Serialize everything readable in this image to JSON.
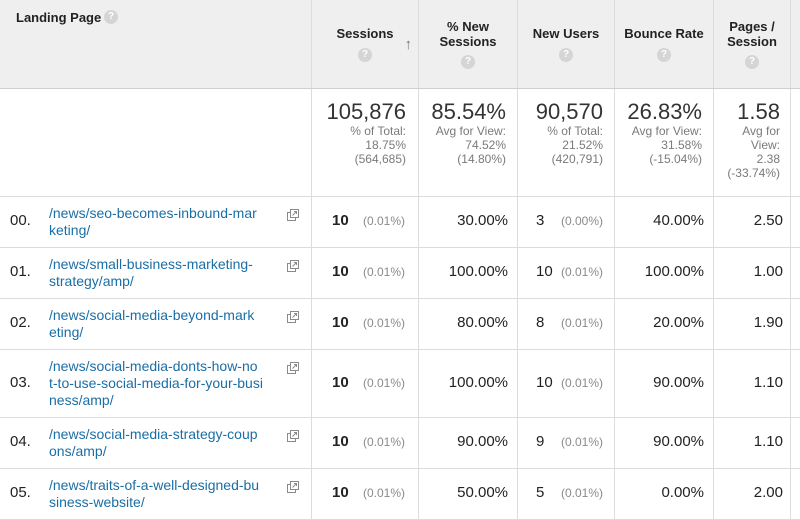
{
  "columns": {
    "landing_page": "Landing Page",
    "sessions": "Sessions",
    "new_sessions": [
      "% New",
      "Sessions"
    ],
    "new_users": "New Users",
    "bounce_rate": "Bounce Rate",
    "pages_session": [
      "Pages /",
      "Session"
    ],
    "help_glyph": "?",
    "sort_glyph": "↑"
  },
  "totals": {
    "sessions": {
      "value": "105,876",
      "lines": [
        "% of Total:",
        "18.75%",
        "(564,685)"
      ]
    },
    "new_sessions": {
      "value": "85.54%",
      "lines": [
        "Avg for View:",
        "74.52%",
        "(14.80%)"
      ]
    },
    "new_users": {
      "value": "90,570",
      "lines": [
        "% of Total:",
        "21.52%",
        "(420,791)"
      ]
    },
    "bounce_rate": {
      "value": "26.83%",
      "lines": [
        "Avg for View:",
        "31.58%",
        "(-15.04%)"
      ]
    },
    "pages_session": {
      "value": "1.58",
      "lines": [
        "Avg for",
        "View:",
        "2.38",
        "(-33.74%)"
      ]
    }
  },
  "rows": [
    {
      "index": "00.",
      "page": [
        "/news/seo-becomes-inbound-mar",
        "keting/"
      ],
      "sessions": "10",
      "sessions_pct": "(0.01%)",
      "new_sessions": "30.00%",
      "new_users": "3",
      "new_users_pct": "(0.00%)",
      "bounce_rate": "40.00%",
      "pages_session": "2.50"
    },
    {
      "index": "01.",
      "page": [
        "/news/small-business-marketing-",
        "strategy/amp/"
      ],
      "sessions": "10",
      "sessions_pct": "(0.01%)",
      "new_sessions": "100.00%",
      "new_users": "10",
      "new_users_pct": "(0.01%)",
      "bounce_rate": "100.00%",
      "pages_session": "1.00"
    },
    {
      "index": "02.",
      "page": [
        "/news/social-media-beyond-mark",
        "eting/"
      ],
      "sessions": "10",
      "sessions_pct": "(0.01%)",
      "new_sessions": "80.00%",
      "new_users": "8",
      "new_users_pct": "(0.01%)",
      "bounce_rate": "20.00%",
      "pages_session": "1.90"
    },
    {
      "index": "03.",
      "page": [
        "/news/social-media-donts-how-no",
        "t-to-use-social-media-for-your-busi",
        "ness/amp/"
      ],
      "sessions": "10",
      "sessions_pct": "(0.01%)",
      "new_sessions": "100.00%",
      "new_users": "10",
      "new_users_pct": "(0.01%)",
      "bounce_rate": "90.00%",
      "pages_session": "1.10"
    },
    {
      "index": "04.",
      "page": [
        "/news/social-media-strategy-coup",
        "ons/amp/"
      ],
      "sessions": "10",
      "sessions_pct": "(0.01%)",
      "new_sessions": "90.00%",
      "new_users": "9",
      "new_users_pct": "(0.01%)",
      "bounce_rate": "90.00%",
      "pages_session": "1.10"
    },
    {
      "index": "05.",
      "page": [
        "/news/traits-of-a-well-designed-bu",
        "siness-website/"
      ],
      "sessions": "10",
      "sessions_pct": "(0.01%)",
      "new_sessions": "50.00%",
      "new_users": "5",
      "new_users_pct": "(0.01%)",
      "bounce_rate": "0.00%",
      "pages_session": "2.00"
    }
  ],
  "icons": {
    "open_page": "open-in-new-window-icon"
  }
}
